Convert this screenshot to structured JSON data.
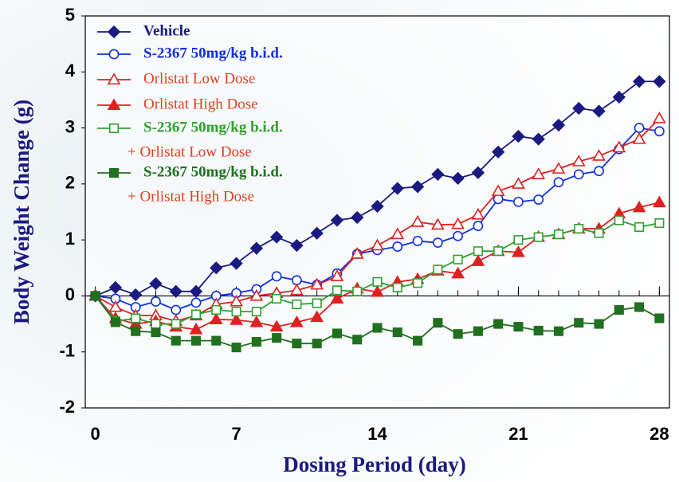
{
  "chart_data": {
    "type": "line",
    "x_label": "Dosing Period (day)",
    "y_label": "Body Weight Change (g)",
    "x": [
      0,
      1,
      2,
      3,
      4,
      5,
      6,
      7,
      8,
      9,
      10,
      11,
      12,
      13,
      14,
      15,
      16,
      17,
      18,
      19,
      20,
      21,
      22,
      23,
      24,
      25,
      26,
      27,
      28
    ],
    "xlim": [
      -0.5,
      28.5
    ],
    "xticks": [
      0,
      7,
      14,
      21,
      28
    ],
    "ylim": [
      -2,
      5
    ],
    "yticks": [
      -2,
      -1,
      0,
      1,
      2,
      3,
      4,
      5
    ],
    "series": [
      {
        "name": [
          "Vehicle"
        ],
        "color": "#1a1a80",
        "marker": "diamond",
        "filled": true,
        "values": [
          0,
          0.15,
          0.02,
          0.22,
          0.08,
          0.08,
          0.5,
          0.58,
          0.85,
          1.05,
          0.9,
          1.12,
          1.35,
          1.4,
          1.6,
          1.92,
          1.95,
          2.17,
          2.1,
          2.2,
          2.57,
          2.85,
          2.8,
          3.05,
          3.35,
          3.3,
          3.55,
          3.83,
          3.83
        ]
      },
      {
        "name": [
          "S-2367 50mg/kg b.i.d."
        ],
        "color": "#1030e0",
        "marker": "circle",
        "filled": false,
        "values": [
          0,
          -0.05,
          -0.2,
          -0.1,
          -0.25,
          -0.12,
          0,
          0.05,
          0.12,
          0.35,
          0.28,
          0.2,
          0.4,
          0.75,
          0.82,
          0.88,
          0.98,
          0.95,
          1.07,
          1.25,
          1.73,
          1.68,
          1.72,
          2.03,
          2.17,
          2.23,
          2.62,
          3,
          2.94
        ]
      },
      {
        "name": [
          "Orlistat Low Dose"
        ],
        "color": "#e02020",
        "marker": "triangle",
        "filled": false,
        "values": [
          0,
          -0.2,
          -0.35,
          -0.35,
          -0.45,
          -0.35,
          -0.15,
          -0.1,
          0,
          0.05,
          0.1,
          0.2,
          0.35,
          0.75,
          0.9,
          1.1,
          1.32,
          1.27,
          1.28,
          1.45,
          1.87,
          2,
          2.17,
          2.27,
          2.4,
          2.5,
          2.65,
          2.8,
          3.17
        ]
      },
      {
        "name": [
          "Orlistat High Dose"
        ],
        "color": "#e02020",
        "marker": "triangle",
        "filled": true,
        "values": [
          0,
          -0.4,
          -0.5,
          -0.45,
          -0.55,
          -0.6,
          -0.42,
          -0.43,
          -0.47,
          -0.55,
          -0.47,
          -0.38,
          -0.05,
          0.13,
          0.07,
          0.25,
          0.3,
          0.45,
          0.4,
          0.62,
          0.8,
          0.78,
          1.05,
          1.1,
          1.2,
          1.2,
          1.47,
          1.58,
          1.67
        ]
      },
      {
        "name": [
          "S-2367 50mg/kg b.i.d.",
          "+ Orlistat Low Dose"
        ],
        "color": "#30a030",
        "marker": "square",
        "filled": false,
        "values": [
          0,
          -0.45,
          -0.4,
          -0.5,
          -0.5,
          -0.33,
          -0.25,
          -0.28,
          -0.28,
          -0.05,
          -0.15,
          -0.13,
          0.1,
          0.08,
          0.25,
          0.15,
          0.23,
          0.47,
          0.65,
          0.8,
          0.8,
          1,
          1.05,
          1.1,
          1.2,
          1.12,
          1.35,
          1.23,
          1.3
        ]
      },
      {
        "name": [
          "S-2367 50mg/kg b.i.d.",
          "+ Orlistat High Dose"
        ],
        "color": "#207020",
        "marker": "square",
        "filled": true,
        "values": [
          0,
          -0.47,
          -0.63,
          -0.65,
          -0.8,
          -0.8,
          -0.8,
          -0.92,
          -0.82,
          -0.75,
          -0.85,
          -0.85,
          -0.67,
          -0.78,
          -0.57,
          -0.65,
          -0.8,
          -0.48,
          -0.68,
          -0.63,
          -0.5,
          -0.55,
          -0.62,
          -0.63,
          -0.48,
          -0.5,
          -0.25,
          -0.2,
          -0.4
        ]
      }
    ]
  }
}
